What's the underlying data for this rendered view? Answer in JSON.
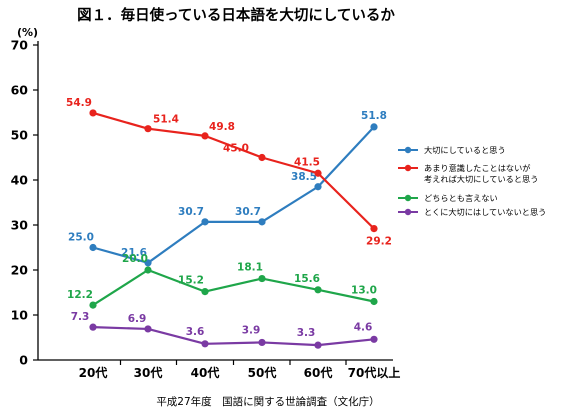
{
  "chart_data": {
    "type": "line",
    "title": "図１．毎日使っている日本語を大切にしているか",
    "unit_label": "(%)",
    "source": "平成27年度　国語に関する世論調査（文化庁）",
    "categories": [
      "20代",
      "30代",
      "40代",
      "50代",
      "60代",
      "70代以上"
    ],
    "ylim": [
      0,
      70
    ],
    "yticks": [
      0,
      10,
      20,
      30,
      40,
      50,
      60,
      70
    ],
    "grid": false,
    "legend_position": "right",
    "series": [
      {
        "name": "大切にしていると思う",
        "legend_lines": [
          "大切にしていると思う"
        ],
        "color": "#2e7dbf",
        "values": [
          25.0,
          21.6,
          30.7,
          30.7,
          38.5,
          51.8
        ],
        "labels": [
          "25.0",
          "21.6",
          "30.7",
          "30.7",
          "38.5",
          "51.8"
        ]
      },
      {
        "name": "あまり意識したことはないが考えれば大切にしていると思う",
        "legend_lines": [
          "あまり意識したことはないが",
          "考えれば大切にしていると思う"
        ],
        "color": "#e8231d",
        "values": [
          54.9,
          51.4,
          49.8,
          45.0,
          41.5,
          29.2
        ],
        "labels": [
          "54.9",
          "51.4",
          "49.8",
          "45.0",
          "41.5",
          "29.2"
        ]
      },
      {
        "name": "どちらとも言えない",
        "legend_lines": [
          "どちらとも言えない"
        ],
        "color": "#1fa64a",
        "values": [
          12.2,
          20.0,
          15.2,
          18.1,
          15.6,
          13.0
        ],
        "labels": [
          "12.2",
          "20.0",
          "15.2",
          "18.1",
          "15.6",
          "13.0"
        ]
      },
      {
        "name": "とくに大切にはしていないと思う",
        "legend_lines": [
          "とくに大切にはしていないと思う"
        ],
        "color": "#7a3aa3",
        "values": [
          7.3,
          6.9,
          3.6,
          3.9,
          3.3,
          4.6
        ],
        "labels": [
          "7.3",
          "6.9",
          "3.6",
          "3.9",
          "3.3",
          "4.6"
        ]
      }
    ]
  }
}
